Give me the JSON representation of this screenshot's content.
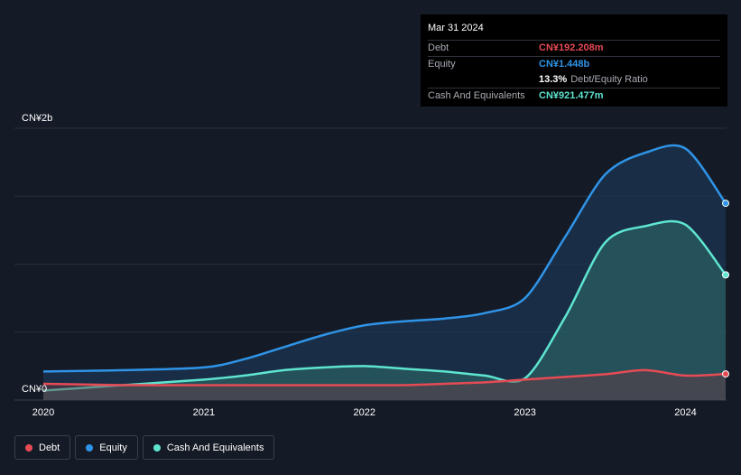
{
  "tooltip": {
    "date": "Mar 31 2024",
    "debt_label": "Debt",
    "debt_value": "CN¥192.208m",
    "equity_label": "Equity",
    "equity_value": "CN¥1.448b",
    "ratio_value": "13.3%",
    "ratio_label": "Debt/Equity Ratio",
    "cash_label": "Cash And Equivalents",
    "cash_value": "CN¥921.477m"
  },
  "legend": [
    {
      "label": "Debt",
      "color": "#e64b54"
    },
    {
      "label": "Equity",
      "color": "#2f94e8"
    },
    {
      "label": "Cash And Equivalents",
      "color": "#5ee5d0"
    }
  ],
  "chart_data": {
    "type": "area",
    "y_unit": "CN¥ billions",
    "ylim": [
      0,
      2
    ],
    "y_tick_labels": [
      "CN¥0",
      "CN¥2b"
    ],
    "xlim": [
      2020.0,
      2024.25
    ],
    "x_ticks": [
      2020,
      2021,
      2022,
      2023,
      2024
    ],
    "x_tick_labels": [
      "2020",
      "2021",
      "2022",
      "2023",
      "2024"
    ],
    "series": [
      {
        "name": "Equity",
        "color": "#2f94e8",
        "x": [
          2020.0,
          2020.5,
          2021.0,
          2021.25,
          2021.5,
          2021.75,
          2022.0,
          2022.25,
          2022.5,
          2022.75,
          2023.0,
          2023.25,
          2023.5,
          2023.75,
          2024.0,
          2024.25
        ],
        "y": [
          0.21,
          0.22,
          0.24,
          0.3,
          0.39,
          0.48,
          0.55,
          0.58,
          0.6,
          0.64,
          0.75,
          1.2,
          1.66,
          1.82,
          1.85,
          1.448
        ]
      },
      {
        "name": "Cash And Equivalents",
        "color": "#5ee5d0",
        "x": [
          2020.0,
          2020.5,
          2021.0,
          2021.25,
          2021.5,
          2021.75,
          2022.0,
          2022.25,
          2022.5,
          2022.75,
          2023.0,
          2023.25,
          2023.5,
          2023.75,
          2024.0,
          2024.25
        ],
        "y": [
          0.07,
          0.11,
          0.15,
          0.18,
          0.22,
          0.24,
          0.25,
          0.23,
          0.21,
          0.18,
          0.16,
          0.61,
          1.16,
          1.28,
          1.29,
          0.921
        ]
      },
      {
        "name": "Debt",
        "color": "#e64b54",
        "x": [
          2020.0,
          2020.5,
          2021.0,
          2021.25,
          2021.5,
          2021.75,
          2022.0,
          2022.25,
          2022.5,
          2022.75,
          2023.0,
          2023.25,
          2023.5,
          2023.75,
          2024.0,
          2024.25
        ],
        "y": [
          0.12,
          0.11,
          0.11,
          0.11,
          0.11,
          0.11,
          0.11,
          0.11,
          0.12,
          0.13,
          0.15,
          0.17,
          0.19,
          0.22,
          0.18,
          0.192
        ]
      }
    ],
    "grid": true
  }
}
